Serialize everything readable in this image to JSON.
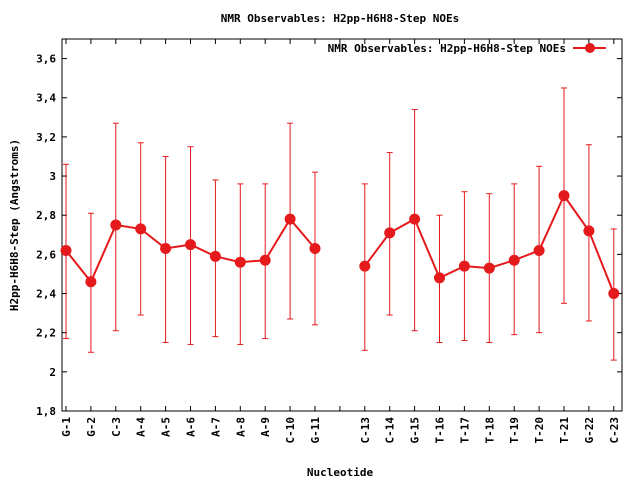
{
  "chart_data": {
    "type": "line",
    "title": "NMR Observables: H2pp-H6H8-Step NOEs",
    "xlabel": "Nucleotide",
    "ylabel": "H2pp-H6H8-Step (Angstroms)",
    "ylim": [
      1.8,
      3.7
    ],
    "yticks": [
      "1,8",
      "2",
      "2,2",
      "2,4",
      "2,6",
      "2,8",
      "3",
      "3,2",
      "3,4",
      "3,6"
    ],
    "ytick_values": [
      1.8,
      2.0,
      2.2,
      2.4,
      2.6,
      2.8,
      3.0,
      3.2,
      3.4,
      3.6
    ],
    "categories": [
      "G-1",
      "G-2",
      "C-3",
      "A-4",
      "A-5",
      "A-6",
      "A-7",
      "A-8",
      "A-9",
      "C-10",
      "G-11",
      "",
      "C-13",
      "C-14",
      "G-15",
      "T-16",
      "T-17",
      "T-18",
      "T-19",
      "T-20",
      "T-21",
      "G-22",
      "C-23"
    ],
    "legend_position": "top-right",
    "grid": false,
    "color": "#e41a1c",
    "series": [
      {
        "name": "NMR Observables: H2pp-H6H8-Step NOEs",
        "values": [
          2.62,
          2.46,
          2.75,
          2.73,
          2.63,
          2.65,
          2.59,
          2.56,
          2.57,
          2.78,
          2.63,
          null,
          2.54,
          2.71,
          2.78,
          2.48,
          2.54,
          2.53,
          2.57,
          2.62,
          2.9,
          2.72,
          2.4
        ],
        "err_low": [
          2.17,
          2.1,
          2.21,
          2.29,
          2.15,
          2.14,
          2.18,
          2.14,
          2.17,
          2.27,
          2.24,
          null,
          2.11,
          2.29,
          2.21,
          2.15,
          2.16,
          2.15,
          2.19,
          2.2,
          2.35,
          2.26,
          2.06
        ],
        "err_high": [
          3.06,
          2.81,
          3.27,
          3.17,
          3.1,
          3.15,
          2.98,
          2.96,
          2.96,
          3.27,
          3.02,
          null,
          2.96,
          3.12,
          3.34,
          2.8,
          2.92,
          2.91,
          2.96,
          3.05,
          3.45,
          3.16,
          2.73
        ]
      }
    ]
  }
}
